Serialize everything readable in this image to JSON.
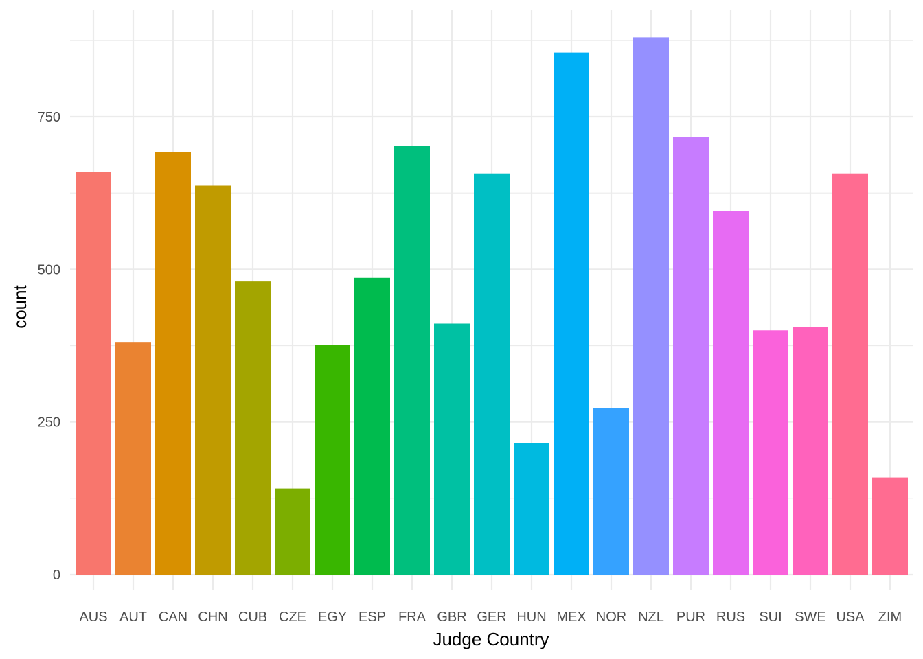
{
  "chart_data": {
    "type": "bar",
    "title": "",
    "xlabel": "Judge Country",
    "ylabel": "count",
    "ylim": [
      0,
      900
    ],
    "yticks": [
      0,
      250,
      500,
      750
    ],
    "grid": true,
    "legend": "none",
    "categories": [
      "AUS",
      "AUT",
      "CAN",
      "CHN",
      "CUB",
      "CZE",
      "EGY",
      "ESP",
      "FRA",
      "GBR",
      "GER",
      "HUN",
      "MEX",
      "NOR",
      "NZL",
      "PUR",
      "RUS",
      "SUI",
      "SWE",
      "USA",
      "ZIM"
    ],
    "values": [
      660,
      381,
      692,
      637,
      480,
      141,
      376,
      486,
      702,
      411,
      657,
      215,
      855,
      273,
      880,
      717,
      595,
      400,
      405,
      657,
      159
    ],
    "colors": [
      "#F8766D",
      "#EA8331",
      "#D89000",
      "#C09B00",
      "#A3A500",
      "#7CAE00",
      "#39B600",
      "#00BB4E",
      "#00BF7D",
      "#00C1A3",
      "#00BFC4",
      "#00BAE0",
      "#00B0F6",
      "#35A2FF",
      "#9590FF",
      "#C77CFF",
      "#E76BF3",
      "#FA62DB",
      "#FF62BC",
      "#FF6C91",
      "#FF6C91"
    ]
  }
}
